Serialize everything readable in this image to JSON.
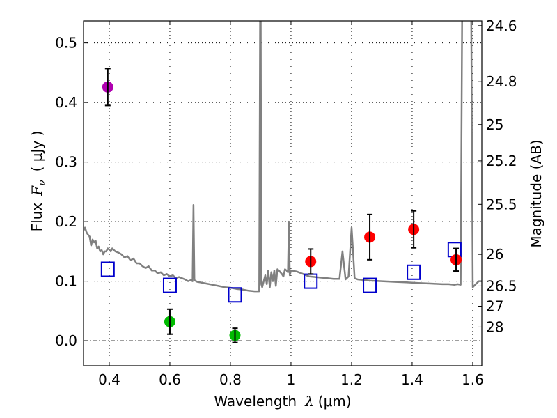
{
  "chart_data": {
    "type": "scatter",
    "title": "",
    "xlabel": "Wavelength  λ (μm)",
    "ylabel": "Flux  Fν ( μJy )",
    "ylabel_parts": {
      "prefix": "Flux",
      "symbol": "F",
      "subscript": "ν",
      "unit": "( μJy )"
    },
    "xlabel_parts": {
      "prefix": "Wavelength",
      "symbol": "λ",
      "unit": "(μm)"
    },
    "y2label": "Magnitude (AB)",
    "xlim": [
      0.315,
      1.63
    ],
    "ylim": [
      -0.042,
      0.537
    ],
    "grid": true,
    "x_ticks": [
      {
        "value": 0.4,
        "label": "0.4"
      },
      {
        "value": 0.6,
        "label": "0.6"
      },
      {
        "value": 0.8,
        "label": "0.8"
      },
      {
        "value": 1.0,
        "label": "1"
      },
      {
        "value": 1.2,
        "label": "1.2"
      },
      {
        "value": 1.4,
        "label": "1.4"
      },
      {
        "value": 1.6,
        "label": "1.6"
      }
    ],
    "y_ticks": [
      {
        "value": 0.0,
        "label": "0.0"
      },
      {
        "value": 0.1,
        "label": "0.1"
      },
      {
        "value": 0.2,
        "label": "0.2"
      },
      {
        "value": 0.3,
        "label": "0.3"
      },
      {
        "value": 0.4,
        "label": "0.4"
      },
      {
        "value": 0.5,
        "label": "0.5"
      }
    ],
    "y2_ticks": [
      {
        "flux": 0.529,
        "label": "24.6"
      },
      {
        "flux": 0.435,
        "label": "24.8"
      },
      {
        "flux": 0.363,
        "label": "25"
      },
      {
        "flux": 0.302,
        "label": "25.2"
      },
      {
        "flux": 0.229,
        "label": "25.5"
      },
      {
        "flux": 0.145,
        "label": "26"
      },
      {
        "flux": 0.092,
        "label": "26.5"
      },
      {
        "flux": 0.058,
        "label": "27"
      },
      {
        "flux": 0.023,
        "label": "28"
      }
    ],
    "series": [
      {
        "name": "model-spectrum",
        "kind": "line",
        "color": "#808080",
        "x": [
          0.315,
          0.32,
          0.325,
          0.33,
          0.335,
          0.34,
          0.345,
          0.35,
          0.355,
          0.36,
          0.365,
          0.37,
          0.375,
          0.38,
          0.385,
          0.39,
          0.395,
          0.4,
          0.405,
          0.41,
          0.42,
          0.43,
          0.44,
          0.45,
          0.46,
          0.47,
          0.48,
          0.49,
          0.5,
          0.51,
          0.52,
          0.53,
          0.54,
          0.55,
          0.56,
          0.57,
          0.58,
          0.59,
          0.6,
          0.61,
          0.62,
          0.63,
          0.64,
          0.65,
          0.66,
          0.67,
          0.675,
          0.678,
          0.681,
          0.69,
          0.7,
          0.72,
          0.74,
          0.76,
          0.78,
          0.8,
          0.82,
          0.84,
          0.86,
          0.88,
          0.89,
          0.895,
          0.898,
          0.9,
          0.902,
          0.905,
          0.91,
          0.915,
          0.92,
          0.925,
          0.93,
          0.935,
          0.94,
          0.945,
          0.95,
          0.955,
          0.96,
          0.965,
          0.97,
          0.975,
          0.98,
          0.985,
          0.99,
          0.993,
          0.996,
          1.0,
          1.02,
          1.04,
          1.06,
          1.08,
          1.1,
          1.12,
          1.14,
          1.16,
          1.17,
          1.18,
          1.19,
          1.2,
          1.205,
          1.21,
          1.22,
          1.24,
          1.26,
          1.3,
          1.34,
          1.38,
          1.42,
          1.46,
          1.5,
          1.52,
          1.54,
          1.55,
          1.56,
          1.565,
          1.57,
          1.575,
          1.58,
          1.585,
          1.59,
          1.595,
          1.6,
          1.61,
          1.62,
          1.63
        ],
        "y": [
          0.185,
          0.19,
          0.182,
          0.178,
          0.175,
          0.16,
          0.17,
          0.165,
          0.168,
          0.155,
          0.158,
          0.15,
          0.152,
          0.145,
          0.15,
          0.15,
          0.155,
          0.153,
          0.15,
          0.155,
          0.15,
          0.148,
          0.145,
          0.14,
          0.142,
          0.135,
          0.138,
          0.13,
          0.13,
          0.125,
          0.122,
          0.125,
          0.118,
          0.118,
          0.113,
          0.115,
          0.11,
          0.112,
          0.108,
          0.11,
          0.105,
          0.107,
          0.105,
          0.103,
          0.1,
          0.102,
          0.1,
          0.228,
          0.102,
          0.099,
          0.098,
          0.096,
          0.094,
          0.092,
          0.09,
          0.089,
          0.087,
          0.086,
          0.084,
          0.083,
          0.083,
          0.083,
          0.54,
          0.54,
          0.095,
          0.09,
          0.1,
          0.11,
          0.095,
          0.118,
          0.09,
          0.115,
          0.1,
          0.118,
          0.092,
          0.12,
          0.118,
          0.115,
          0.112,
          0.108,
          0.12,
          0.118,
          0.115,
          0.2,
          0.11,
          0.118,
          0.116,
          0.112,
          0.108,
          0.107,
          0.106,
          0.105,
          0.104,
          0.104,
          0.15,
          0.103,
          0.108,
          0.19,
          0.15,
          0.105,
          0.103,
          0.102,
          0.101,
          0.1,
          0.099,
          0.098,
          0.097,
          0.096,
          0.095,
          0.095,
          0.094,
          0.095,
          0.094,
          0.54,
          0.54,
          0.54,
          0.54,
          0.54,
          0.54,
          0.54,
          0.09,
          0.095,
          0.1,
          0.1
        ]
      },
      {
        "name": "model-photometry",
        "kind": "open-square",
        "color": "#0000cc",
        "x": [
          0.395,
          0.6,
          0.815,
          1.065,
          1.26,
          1.405,
          1.54
        ],
        "y": [
          0.12,
          0.093,
          0.077,
          0.1,
          0.093,
          0.115,
          0.153
        ]
      },
      {
        "name": "detection-uv",
        "kind": "filled-circle",
        "color": "#b000b0",
        "x": [
          0.395
        ],
        "y": [
          0.426
        ],
        "yerr": [
          0.031
        ]
      },
      {
        "name": "detection-optical",
        "kind": "filled-circle",
        "color": "#00bb00",
        "x": [
          0.6,
          0.815
        ],
        "y": [
          0.032,
          0.009
        ],
        "yerr": [
          0.021,
          0.012
        ]
      },
      {
        "name": "detection-nir",
        "kind": "filled-circle",
        "color": "#ff0000",
        "x": [
          1.065,
          1.26,
          1.405,
          1.545
        ],
        "y": [
          0.133,
          0.174,
          0.187,
          0.136
        ],
        "yerr": [
          0.021,
          0.038,
          0.031,
          0.019
        ]
      }
    ]
  }
}
